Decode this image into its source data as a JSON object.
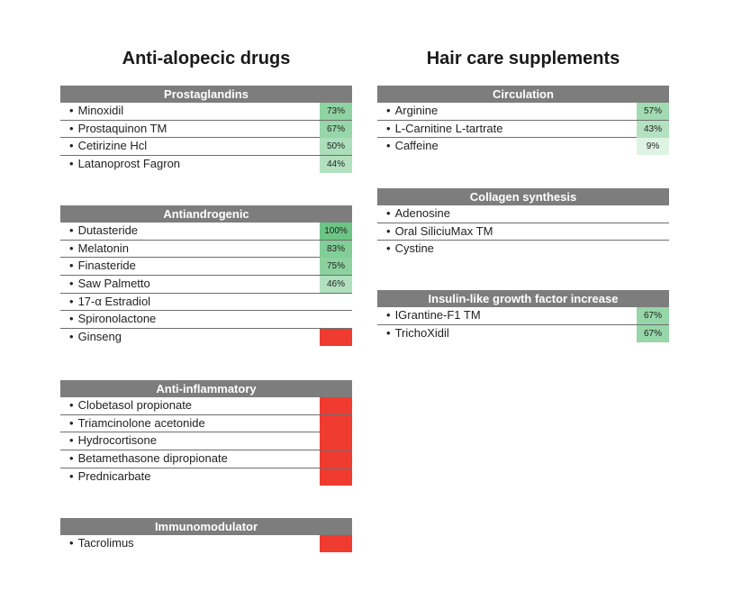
{
  "chart_data": {
    "type": "table",
    "columns": [
      {
        "title": "Anti-alopecic drugs",
        "sections": [
          {
            "header": "Prostaglandins",
            "items": [
              {
                "name": "Minoxidil",
                "label": "73%",
                "value": 73,
                "status": "green"
              },
              {
                "name": "Prostaquinon TM",
                "label": "67%",
                "value": 67,
                "status": "green"
              },
              {
                "name": "Cetirizine Hcl",
                "label": "50%",
                "value": 50,
                "status": "green"
              },
              {
                "name": "Latanoprost Fagron",
                "label": "44%",
                "value": 44,
                "status": "green"
              }
            ]
          },
          {
            "header": "Antiandrogenic",
            "items": [
              {
                "name": "Dutasteride",
                "label": "100%",
                "value": 100,
                "status": "green"
              },
              {
                "name": "Melatonin",
                "label": "83%",
                "value": 83,
                "status": "green"
              },
              {
                "name": "Finasteride",
                "label": "75%",
                "value": 75,
                "status": "green"
              },
              {
                "name": "Saw Palmetto",
                "label": "46%",
                "value": 46,
                "status": "green"
              },
              {
                "name": "17-α Estradiol",
                "label": "",
                "value": null,
                "status": "none"
              },
              {
                "name": "Spironolactone",
                "label": "",
                "value": null,
                "status": "none"
              },
              {
                "name": "Ginseng",
                "label": "",
                "value": null,
                "status": "red"
              }
            ]
          },
          {
            "header": "Anti-inflammatory",
            "items": [
              {
                "name": "Clobetasol propionate",
                "label": "",
                "value": null,
                "status": "red"
              },
              {
                "name": "Triamcinolone acetonide",
                "label": "",
                "value": null,
                "status": "red"
              },
              {
                "name": "Hydrocortisone",
                "label": "",
                "value": null,
                "status": "red"
              },
              {
                "name": "Betamethasone dipropionate",
                "label": "",
                "value": null,
                "status": "red"
              },
              {
                "name": "Prednicarbate",
                "label": "",
                "value": null,
                "status": "red"
              }
            ]
          },
          {
            "header": "Immunomodulator",
            "items": [
              {
                "name": "Tacrolimus",
                "label": "",
                "value": null,
                "status": "red"
              }
            ]
          }
        ]
      },
      {
        "title": "Hair care supplements",
        "sections": [
          {
            "header": "Circulation",
            "items": [
              {
                "name": "Arginine",
                "label": "57%",
                "value": 57,
                "status": "green"
              },
              {
                "name": "L-Carnitine L-tartrate",
                "label": "43%",
                "value": 43,
                "status": "green"
              },
              {
                "name": "Caffeine",
                "label": "9%",
                "value": 9,
                "status": "green"
              }
            ]
          },
          {
            "header": "Collagen synthesis",
            "items": [
              {
                "name": "Adenosine",
                "label": "",
                "value": null,
                "status": "none"
              },
              {
                "name": "Oral SiliciuMax TM",
                "label": "",
                "value": null,
                "status": "none"
              },
              {
                "name": "Cystine",
                "label": "",
                "value": null,
                "status": "none"
              }
            ]
          },
          {
            "header": "Insulin-like growth factor increase",
            "items": [
              {
                "name": "IGrantine-F1 TM",
                "label": "67%",
                "value": 67,
                "status": "green"
              },
              {
                "name": "TrichoXidil",
                "label": "67%",
                "value": 67,
                "status": "green"
              }
            ]
          }
        ]
      }
    ]
  },
  "colors": {
    "header_bg": "#7d7d7d",
    "green_light": "#eaf7ee",
    "green_dark": "#6cc585",
    "red": "#f03b30"
  }
}
